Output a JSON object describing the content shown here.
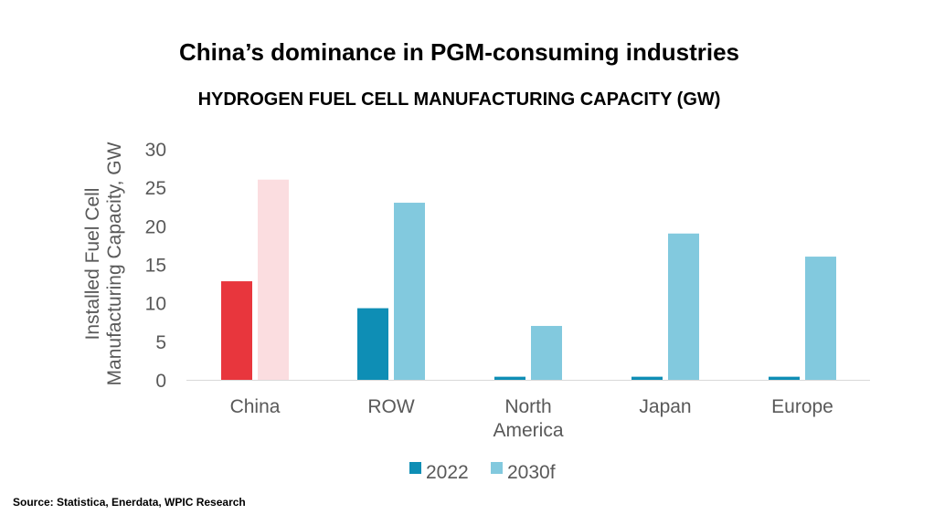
{
  "header": {
    "title": "China’s dominance in PGM-consuming industries",
    "subtitle": "HYDROGEN FUEL CELL MANUFACTURING CAPACITY (GW)"
  },
  "footer": {
    "source": "Source: Statistica, Enerdata, WPIC Research"
  },
  "colors": {
    "china_2022": "#e8363d",
    "china_2030f": "#fbdde0",
    "series_2022": "#0e8eb5",
    "series_2030f": "#82c9de",
    "axis": "#d9d9d9",
    "text": "#595959"
  },
  "chart_data": {
    "type": "bar",
    "title": "HYDROGEN FUEL CELL MANUFACTURING CAPACITY (GW)",
    "xlabel": "",
    "ylabel": "Installed Fuel Cell Manufacturing Capacity, GW",
    "ylabel_lines": [
      "Installed Fuel Cell",
      "Manufacturing Capacity, GW"
    ],
    "ylim": [
      0,
      30
    ],
    "yticks": [
      0,
      5,
      10,
      15,
      20,
      25,
      30
    ],
    "grid": false,
    "legend_position": "bottom-center",
    "categories": [
      "China",
      "ROW",
      "North America",
      "Japan",
      "Europe"
    ],
    "category_lines": [
      [
        "China"
      ],
      [
        "ROW"
      ],
      [
        "North",
        "America"
      ],
      [
        "Japan"
      ],
      [
        "Europe"
      ]
    ],
    "series": [
      {
        "name": "2022",
        "values": [
          12.8,
          9.3,
          0.4,
          0.4,
          0.4
        ]
      },
      {
        "name": "2030f",
        "values": [
          26,
          23,
          7,
          19,
          16
        ]
      }
    ]
  }
}
